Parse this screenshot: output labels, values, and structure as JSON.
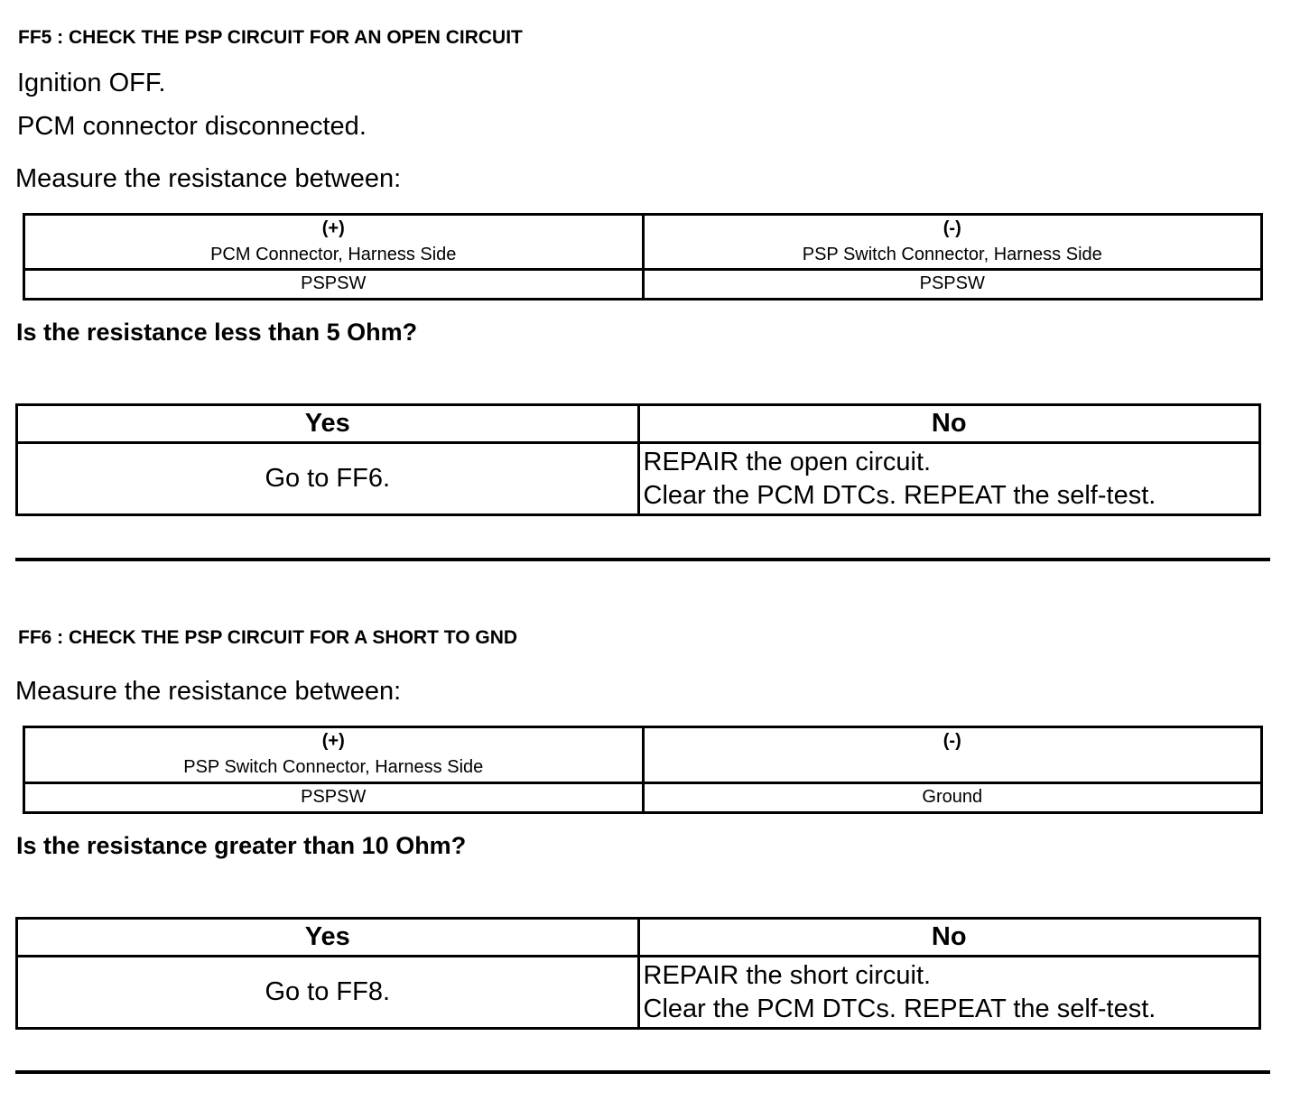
{
  "sections": [
    {
      "title": "FF5 : CHECK THE PSP CIRCUIT FOR AN OPEN CIRCUIT",
      "conditions": [
        "Ignition OFF.",
        "PCM connector disconnected."
      ],
      "measure_label": "Measure the resistance between:",
      "measure_table": {
        "plus": {
          "sign": "(+)",
          "label": "PCM Connector, Harness Side",
          "pin": "PSPSW"
        },
        "minus": {
          "sign": "(-)",
          "label": "PSP Switch Connector, Harness Side",
          "pin": "PSPSW"
        }
      },
      "question": "Is the resistance less than 5 Ohm?",
      "result_table": {
        "yes_header": "Yes",
        "no_header": "No",
        "yes_action": "Go to FF6.",
        "no_action_1": "REPAIR the open circuit.",
        "no_action_2": "Clear the PCM DTCs. REPEAT the self-test."
      }
    },
    {
      "title": "FF6 : CHECK THE PSP CIRCUIT FOR A SHORT TO GND",
      "measure_label": "Measure the resistance between:",
      "measure_table": {
        "plus": {
          "sign": "(+)",
          "label": "PSP Switch Connector, Harness Side",
          "pin": "PSPSW"
        },
        "minus": {
          "sign": "(-)",
          "label": "",
          "pin": "Ground"
        }
      },
      "question": "Is the resistance greater than 10 Ohm?",
      "result_table": {
        "yes_header": "Yes",
        "no_header": "No",
        "yes_action": "Go to FF8.",
        "no_action_1": "REPAIR the short circuit.",
        "no_action_2": "Clear the PCM DTCs. REPEAT the self-test."
      }
    }
  ]
}
